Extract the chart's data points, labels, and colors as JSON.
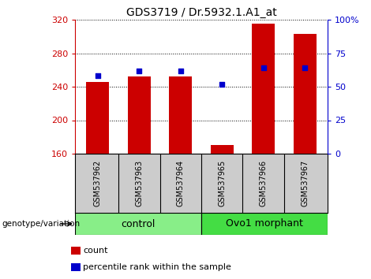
{
  "title": "GDS3719 / Dr.5932.1.A1_at",
  "samples": [
    "GSM537962",
    "GSM537963",
    "GSM537964",
    "GSM537965",
    "GSM537966",
    "GSM537967"
  ],
  "count_values": [
    246,
    252,
    252,
    170,
    315,
    303
  ],
  "percentile_values": [
    58,
    62,
    62,
    52,
    64,
    64
  ],
  "ymin": 160,
  "ymax": 320,
  "yticks": [
    160,
    200,
    240,
    280,
    320
  ],
  "y2min": 0,
  "y2max": 100,
  "y2ticks": [
    0,
    25,
    50,
    75,
    100
  ],
  "bar_color": "#cc0000",
  "dot_color": "#0000cc",
  "groups": [
    {
      "label": "control",
      "color": "#88ee88",
      "start": 0,
      "end": 2
    },
    {
      "label": "Ovo1 morphant",
      "color": "#44dd44",
      "start": 3,
      "end": 5
    }
  ],
  "legend_count_label": "count",
  "legend_percentile_label": "percentile rank within the sample",
  "genotype_label": "genotype/variation",
  "tick_color_left": "#cc0000",
  "tick_color_right": "#0000cc",
  "bar_width": 0.55,
  "sample_area_color": "#cccccc",
  "title_fontsize": 10,
  "tick_fontsize": 8,
  "sample_fontsize": 7,
  "group_fontsize": 9,
  "legend_fontsize": 8
}
